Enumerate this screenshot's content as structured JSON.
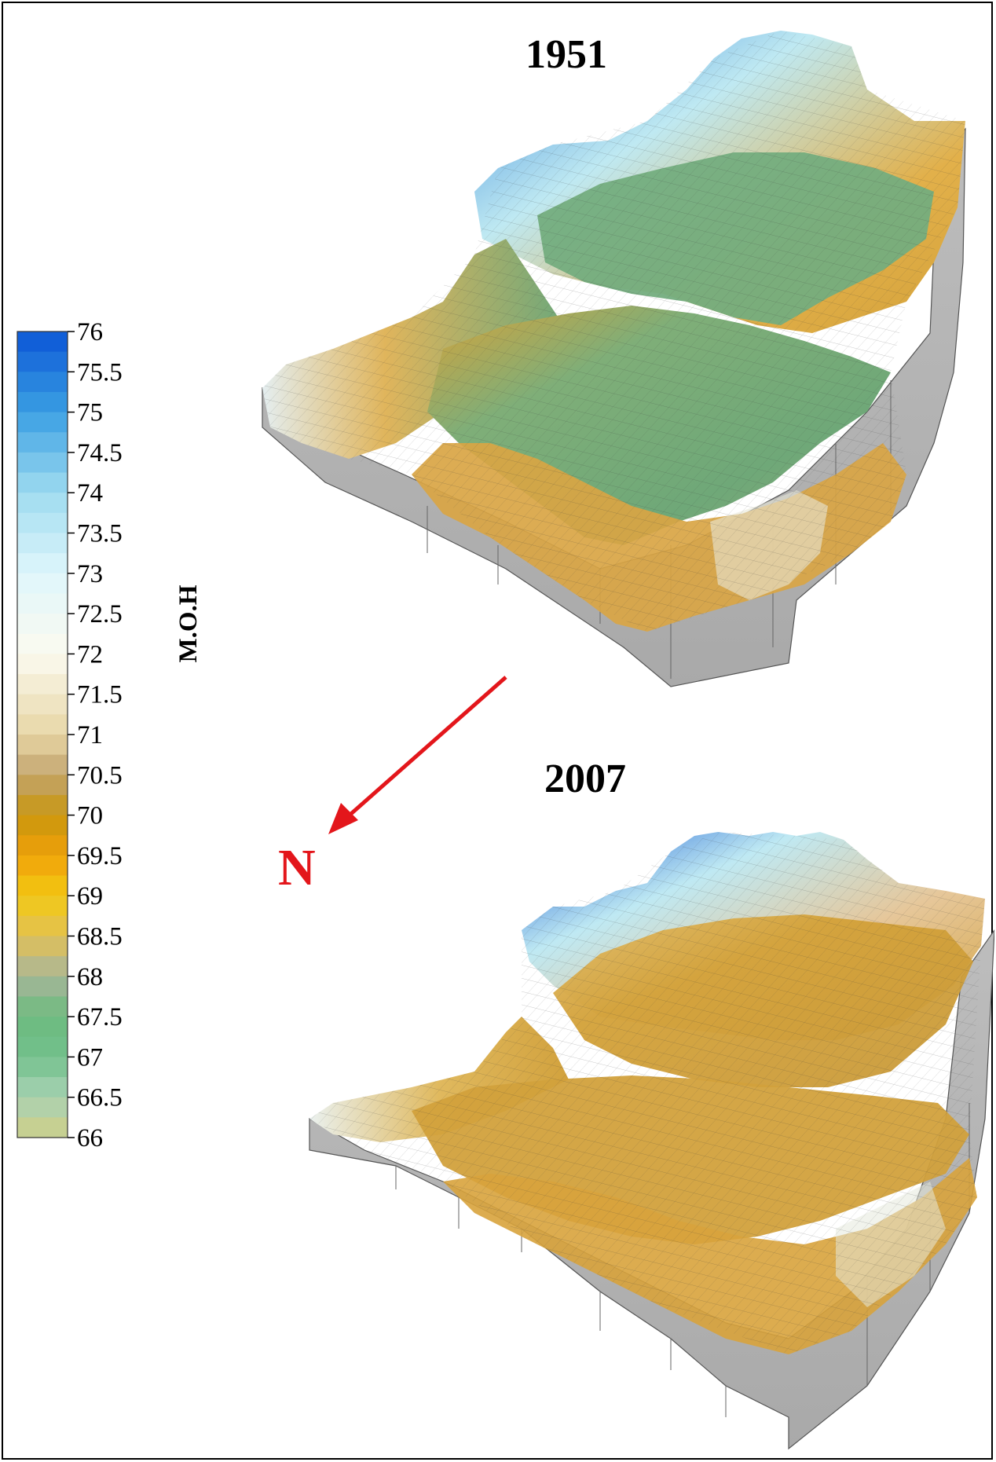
{
  "panels": [
    {
      "year": "1951"
    },
    {
      "year": "2007"
    }
  ],
  "north_arrow": {
    "label": "N",
    "color": "#e3161b"
  },
  "legend": {
    "title": "M.O.H",
    "min": 66,
    "max": 76,
    "ticks": [
      "76",
      "75.5",
      "75",
      "74.5",
      "74",
      "73.5",
      "73",
      "72.5",
      "72",
      "71.5",
      "71",
      "70.5",
      "70",
      "69.5",
      "69",
      "68.5",
      "68",
      "67.5",
      "67",
      "66.5",
      "66"
    ],
    "colors": {
      "76": "#0b56d6",
      "75": "#3a9fe3",
      "74": "#9fdcef",
      "73": "#dff6fb",
      "72": "#fbfaf0",
      "71": "#e8d7a6",
      "70.5": "#c2a46e",
      "70": "#c8960e",
      "69.5": "#f0a10a",
      "69": "#f2c912",
      "68.5": "#e2c154",
      "68": "#a8b69a",
      "67.5": "#6cbb7e",
      "67": "#72c08c",
      "66.5": "#a8d2b4",
      "66": "#d0cf86"
    }
  }
}
